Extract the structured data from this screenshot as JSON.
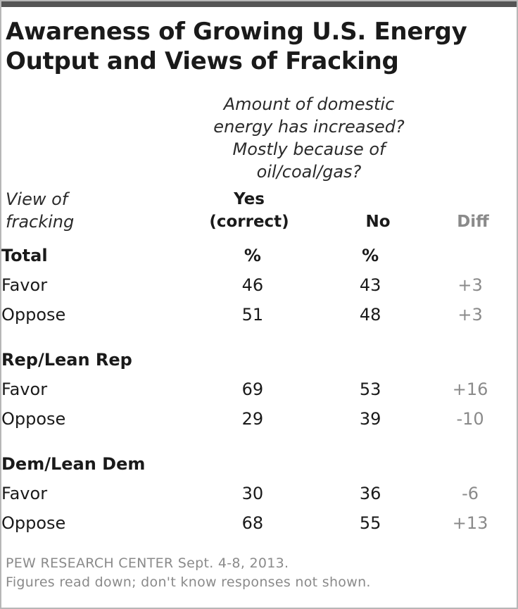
{
  "title": {
    "line1": "Awareness of Growing U.S. Energy",
    "line2": "Output and Views of Fracking"
  },
  "question": {
    "line1": "Amount of domestic",
    "line2": "energy has increased?",
    "line3": "Mostly because of",
    "line4": "oil/coal/gas?"
  },
  "row_header": {
    "line1": "View of",
    "line2": "fracking"
  },
  "columns": {
    "yes_line1": "Yes",
    "yes_line2": "(correct)",
    "no": "No",
    "diff": "Diff"
  },
  "colors": {
    "text": "#1a1a1a",
    "muted": "#8a8a8a",
    "top_rule": "#555555",
    "border": "#b7b7b7"
  },
  "chart_data": {
    "type": "table",
    "title": "Awareness of Growing U.S. Energy Output and Views of Fracking",
    "subtitle": "Amount of domestic energy has increased? Mostly because of oil/coal/gas?",
    "columns": [
      "Yes (correct)",
      "No",
      "Diff"
    ],
    "groups": [
      {
        "name": "Total",
        "units": {
          "yes": "%",
          "no": "%"
        },
        "rows": [
          {
            "label": "Favor",
            "yes": "46",
            "no": "43",
            "diff": "+3"
          },
          {
            "label": "Oppose",
            "yes": "51",
            "no": "48",
            "diff": "+3"
          }
        ]
      },
      {
        "name": "Rep/Lean Rep",
        "rows": [
          {
            "label": "Favor",
            "yes": "69",
            "no": "53",
            "diff": "+16"
          },
          {
            "label": "Oppose",
            "yes": "29",
            "no": "39",
            "diff": "-10"
          }
        ]
      },
      {
        "name": "Dem/Lean Dem",
        "rows": [
          {
            "label": "Favor",
            "yes": "30",
            "no": "36",
            "diff": "-6"
          },
          {
            "label": "Oppose",
            "yes": "68",
            "no": "55",
            "diff": "+13"
          }
        ]
      }
    ]
  },
  "footer": {
    "source": "PEW RESEARCH CENTER Sept. 4-8, 2013.",
    "note": "Figures read down; don't know responses not shown."
  }
}
